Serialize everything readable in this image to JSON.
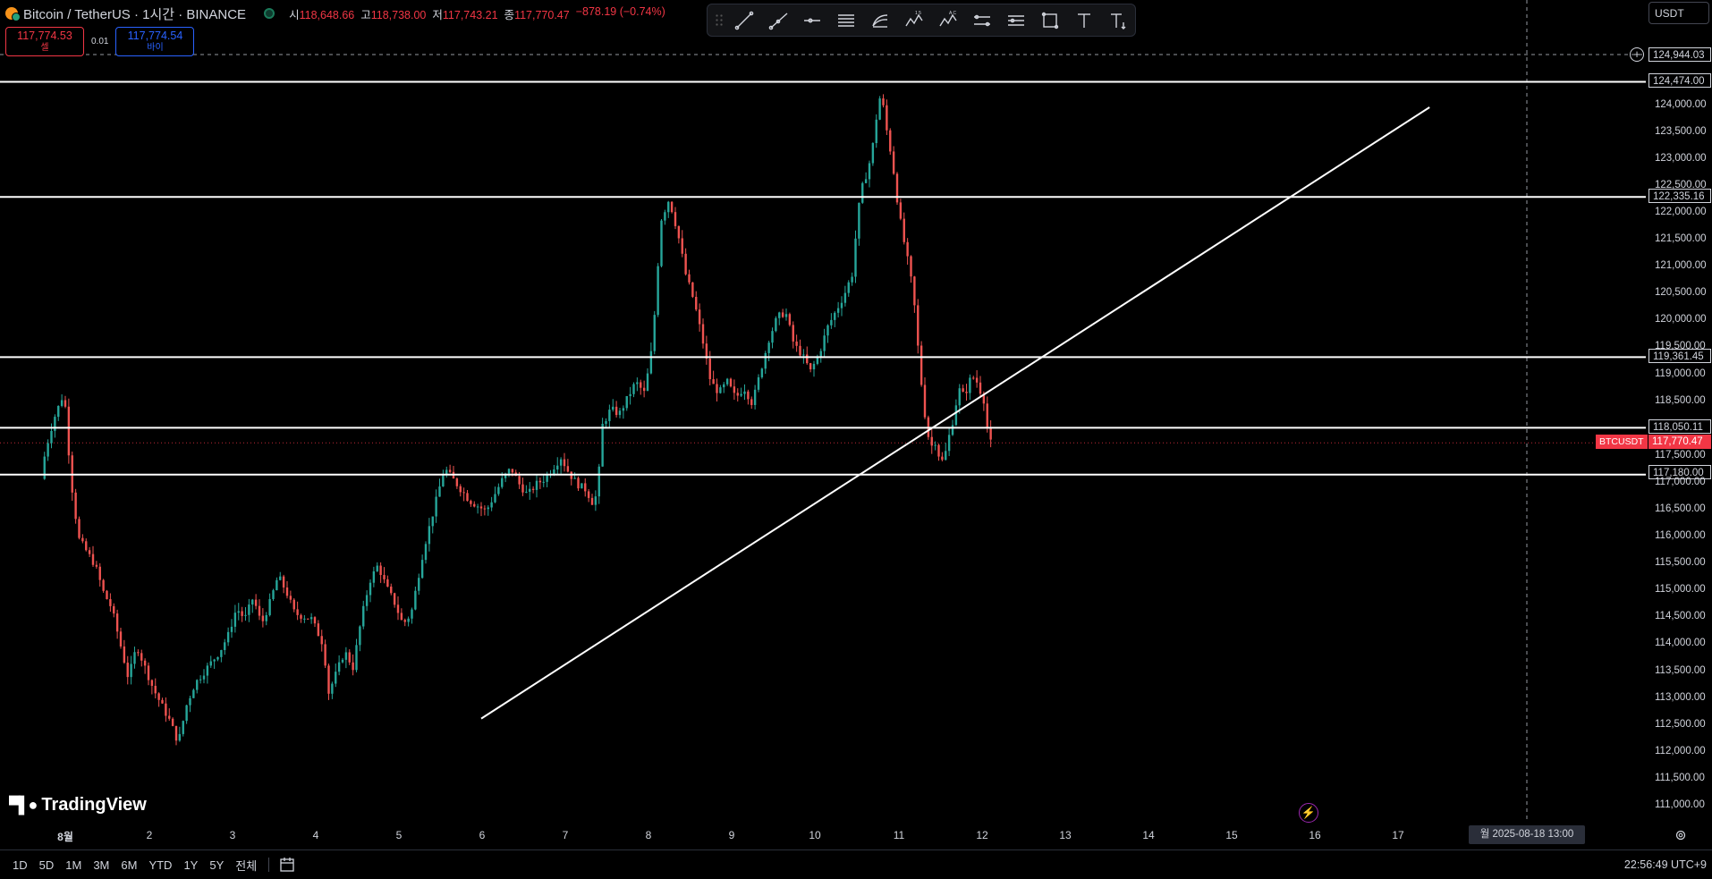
{
  "header": {
    "symbol_title": "Bitcoin / TetherUS · 1시간 · BINANCE",
    "ohlc": [
      {
        "key": "시",
        "value": "118,648.66"
      },
      {
        "key": "고",
        "value": "118,738.00"
      },
      {
        "key": "저",
        "value": "117,743.21"
      },
      {
        "key": "종",
        "value": "117,770.47"
      }
    ],
    "change": "−878.19 (−0.74%)",
    "sell_price": "117,774.53",
    "sell_label": "셀",
    "spread": "0.01",
    "buy_price": "117,774.54",
    "buy_label": "바이"
  },
  "toolbar": {
    "tools": [
      "trend-line-icon",
      "ray-icon",
      "horizontal-ray-icon",
      "parallel-channel-icon",
      "fib-retracement-icon",
      "elliott-wave-icon",
      "abcd-pattern-icon",
      "price-range-icon",
      "date-price-range-icon",
      "rectangle-icon",
      "text-icon",
      "text-note-icon"
    ]
  },
  "currency": "USDT",
  "chart_data": {
    "type": "candlestick",
    "symbol": "BTCUSDT",
    "interval": "1시간",
    "exchange": "BINANCE",
    "y_axis_labels": [
      "124,000.00",
      "123,500.00",
      "123,000.00",
      "122,500.00",
      "122,000.00",
      "121,500.00",
      "121,000.00",
      "120,500.00",
      "120,000.00",
      "119,500.00",
      "119,000.00",
      "118,500.00",
      "117,500.00",
      "117,000.00",
      "116,500.00",
      "116,000.00",
      "115,500.00",
      "115,000.00",
      "114,500.00",
      "114,000.00",
      "113,500.00",
      "113,000.00",
      "112,500.00",
      "112,000.00",
      "111,500.00",
      "111,000.00"
    ],
    "ylim": [
      110800,
      125200
    ],
    "x_axis_labels": [
      "8월",
      "2",
      "3",
      "4",
      "5",
      "6",
      "7",
      "8",
      "9",
      "10",
      "11",
      "12",
      "13",
      "14",
      "15",
      "16",
      "17"
    ],
    "horizontal_lines": [
      {
        "label": "124,474.00",
        "price": 124474.0
      },
      {
        "label": "122,335.16",
        "price": 122335.16
      },
      {
        "label": "119,361.45",
        "price": 119361.45
      },
      {
        "label": "118,050.11",
        "price": 118050.11
      },
      {
        "label": "117,180.00",
        "price": 117180.0
      }
    ],
    "trend_line": {
      "start": {
        "day": 6.0,
        "price": 112650
      },
      "end": {
        "day": 17.4,
        "price": 124000
      }
    },
    "last_price": {
      "symbol": "BTCUSDT",
      "label": "117,770.47",
      "price": 117770.47
    },
    "crosshair": {
      "price_label": "124,944.03",
      "date_label": "월 2025-08-18  13:00"
    },
    "path": [
      [
        0.75,
        117100
      ],
      [
        0.8,
        117600
      ],
      [
        0.9,
        118200
      ],
      [
        1.0,
        118600
      ],
      [
        1.05,
        118400
      ],
      [
        1.1,
        117200
      ],
      [
        1.2,
        116000
      ],
      [
        1.4,
        115500
      ],
      [
        1.5,
        115000
      ],
      [
        1.6,
        114700
      ],
      [
        1.8,
        113400
      ],
      [
        1.9,
        114000
      ],
      [
        2.0,
        113600
      ],
      [
        2.1,
        113200
      ],
      [
        2.3,
        112600
      ],
      [
        2.4,
        112200
      ],
      [
        2.5,
        112900
      ],
      [
        2.6,
        113300
      ],
      [
        2.75,
        113600
      ],
      [
        2.9,
        113900
      ],
      [
        3.0,
        114200
      ],
      [
        3.1,
        114700
      ],
      [
        3.2,
        114500
      ],
      [
        3.3,
        114900
      ],
      [
        3.4,
        114400
      ],
      [
        3.5,
        114800
      ],
      [
        3.6,
        115300
      ],
      [
        3.7,
        115000
      ],
      [
        3.8,
        114600
      ],
      [
        4.0,
        114500
      ],
      [
        4.15,
        114000
      ],
      [
        4.2,
        113100
      ],
      [
        4.3,
        113500
      ],
      [
        4.4,
        113900
      ],
      [
        4.5,
        113600
      ],
      [
        4.6,
        114500
      ],
      [
        4.7,
        115200
      ],
      [
        4.8,
        115500
      ],
      [
        4.9,
        115100
      ],
      [
        5.0,
        114800
      ],
      [
        5.1,
        114400
      ],
      [
        5.2,
        114600
      ],
      [
        5.35,
        115800
      ],
      [
        5.5,
        116700
      ],
      [
        5.6,
        117300
      ],
      [
        5.7,
        117100
      ],
      [
        5.8,
        116900
      ],
      [
        5.9,
        116700
      ],
      [
        6.0,
        116600
      ],
      [
        6.1,
        116500
      ],
      [
        6.2,
        116800
      ],
      [
        6.3,
        117100
      ],
      [
        6.4,
        117300
      ],
      [
        6.5,
        117000
      ],
      [
        6.6,
        116800
      ],
      [
        6.7,
        117000
      ],
      [
        6.8,
        117100
      ],
      [
        6.9,
        117300
      ],
      [
        7.0,
        117500
      ],
      [
        7.1,
        117200
      ],
      [
        7.2,
        117000
      ],
      [
        7.3,
        116900
      ],
      [
        7.4,
        116600
      ],
      [
        7.45,
        117100
      ],
      [
        7.5,
        118100
      ],
      [
        7.6,
        118400
      ],
      [
        7.7,
        118300
      ],
      [
        7.8,
        118600
      ],
      [
        7.9,
        118900
      ],
      [
        8.0,
        118700
      ],
      [
        8.05,
        119100
      ],
      [
        8.1,
        119600
      ],
      [
        8.15,
        120700
      ],
      [
        8.2,
        121900
      ],
      [
        8.3,
        122300
      ],
      [
        8.4,
        121700
      ],
      [
        8.5,
        120900
      ],
      [
        8.6,
        120400
      ],
      [
        8.7,
        119700
      ],
      [
        8.8,
        118900
      ],
      [
        8.9,
        118700
      ],
      [
        9.0,
        118900
      ],
      [
        9.1,
        118600
      ],
      [
        9.2,
        118800
      ],
      [
        9.3,
        118500
      ],
      [
        9.4,
        119100
      ],
      [
        9.5,
        119700
      ],
      [
        9.6,
        120100
      ],
      [
        9.7,
        120200
      ],
      [
        9.8,
        119600
      ],
      [
        9.9,
        119400
      ],
      [
        10.0,
        119100
      ],
      [
        10.1,
        119400
      ],
      [
        10.2,
        119900
      ],
      [
        10.3,
        120200
      ],
      [
        10.4,
        120500
      ],
      [
        10.5,
        120900
      ],
      [
        10.55,
        121700
      ],
      [
        10.6,
        122400
      ],
      [
        10.7,
        122900
      ],
      [
        10.75,
        123300
      ],
      [
        10.8,
        123900
      ],
      [
        10.85,
        124300
      ],
      [
        10.9,
        123700
      ],
      [
        10.95,
        123300
      ],
      [
        11.0,
        122800
      ],
      [
        11.05,
        122200
      ],
      [
        11.1,
        121700
      ],
      [
        11.15,
        121300
      ],
      [
        11.2,
        120900
      ],
      [
        11.25,
        120300
      ],
      [
        11.3,
        119400
      ],
      [
        11.35,
        118600
      ],
      [
        11.4,
        118000
      ],
      [
        11.45,
        117700
      ],
      [
        11.5,
        117800
      ],
      [
        11.55,
        117500
      ],
      [
        11.6,
        117400
      ],
      [
        11.65,
        117800
      ],
      [
        11.7,
        118100
      ],
      [
        11.75,
        118500
      ],
      [
        11.8,
        118800
      ],
      [
        11.85,
        118600
      ],
      [
        11.9,
        118900
      ],
      [
        11.95,
        119000
      ],
      [
        12.0,
        118900
      ],
      [
        12.05,
        118700
      ],
      [
        12.1,
        118500
      ],
      [
        12.12,
        118150
      ],
      [
        12.14,
        117770
      ]
    ]
  },
  "branding": "TradingView",
  "bottom_bar": {
    "ranges": [
      "1D",
      "5D",
      "1M",
      "3M",
      "6M",
      "YTD",
      "1Y",
      "5Y",
      "전체"
    ],
    "clock": "22:56:49 UTC+9"
  }
}
